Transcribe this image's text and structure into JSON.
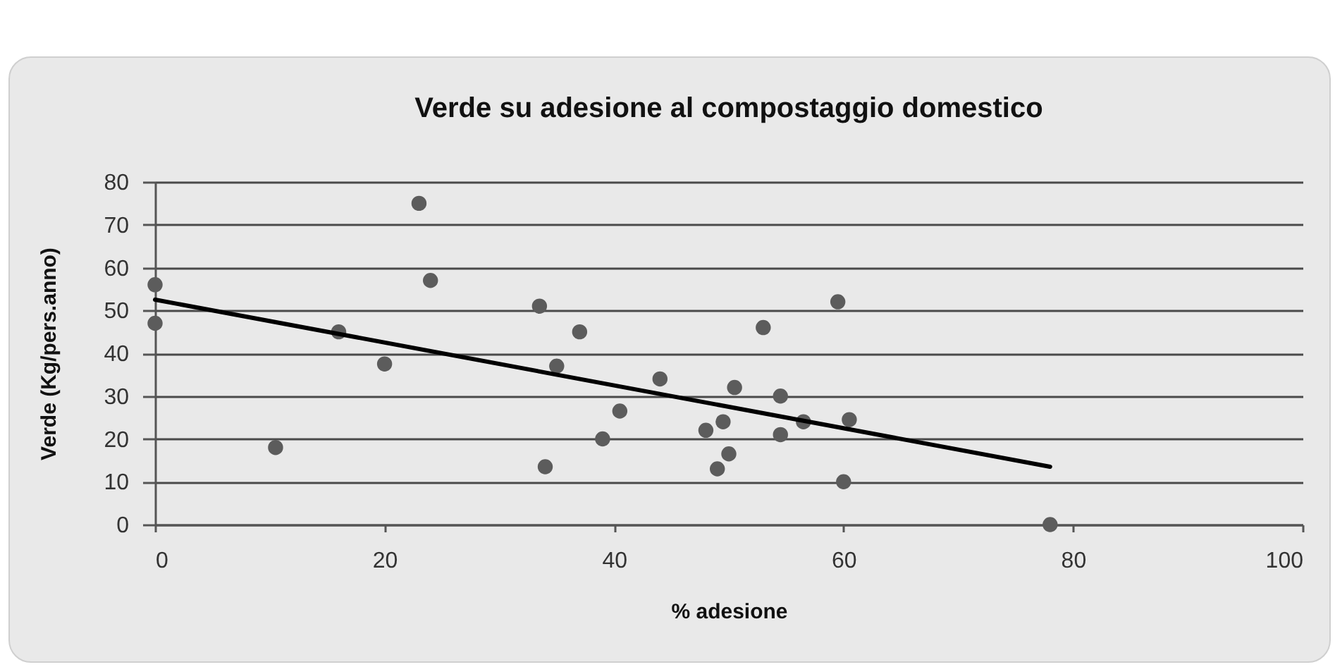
{
  "chart_data": {
    "type": "scatter",
    "title": "Verde su adesione al compostaggio domestico",
    "xlabel": "% adesione",
    "ylabel": "Verde (Kg/pers.anno)",
    "xlim": [
      0,
      100
    ],
    "xticks": [
      0,
      20,
      40,
      60,
      80,
      100
    ],
    "ylim": [
      0,
      80
    ],
    "yticks": [
      0,
      10,
      20,
      30,
      40,
      50,
      60,
      70,
      80
    ],
    "grid": "y",
    "marker": "circle",
    "series": [
      {
        "color": "#5c5c5c",
        "x": [
          0,
          0,
          10.5,
          16,
          20,
          23,
          24,
          33.5,
          34,
          35,
          37,
          39,
          40.5,
          44,
          48,
          49.5,
          49,
          50,
          50.5,
          53,
          54.5,
          54.5,
          56.5,
          59.5,
          60.5,
          60,
          78
        ],
        "values": [
          56,
          47,
          18,
          45,
          37.5,
          75,
          57,
          51,
          13.5,
          37,
          45,
          20,
          26.5,
          34,
          22,
          24,
          13,
          16.5,
          32,
          46,
          30,
          21,
          24,
          52,
          24.5,
          10,
          0
        ]
      },
      {
        "type": "line",
        "marker": "none",
        "color": "#000000",
        "x": [
          0,
          78
        ],
        "values": [
          52.5,
          13.5
        ]
      }
    ]
  }
}
